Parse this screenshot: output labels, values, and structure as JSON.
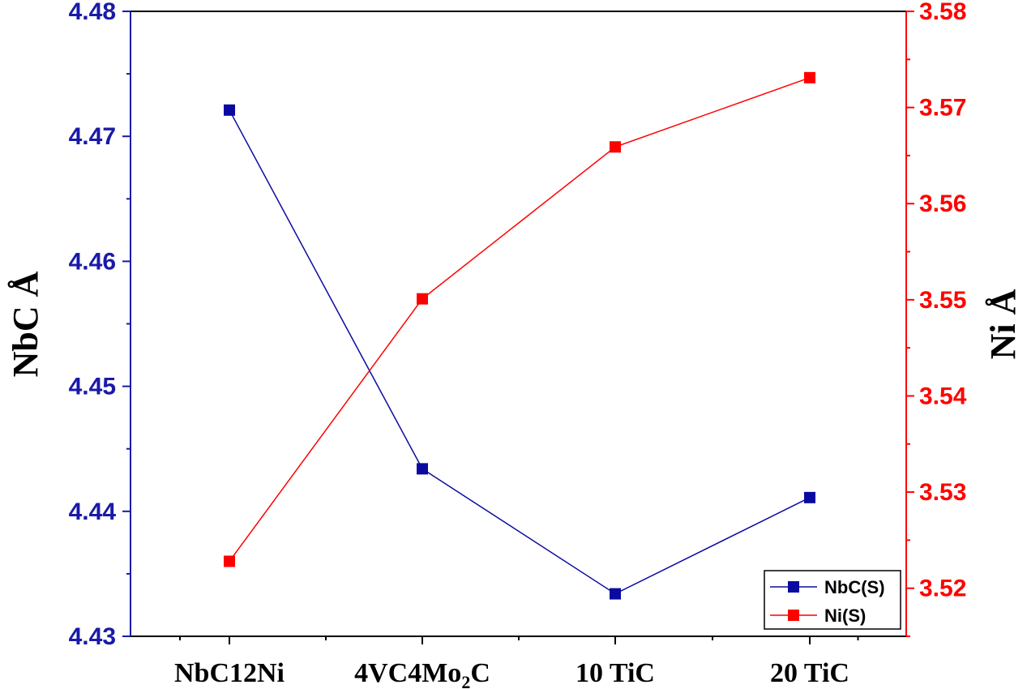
{
  "chart_data": {
    "type": "line",
    "categories": [
      "NbC12Ni",
      "4VC4Mo2C",
      "10 TiC",
      "20 TiC"
    ],
    "category_labels": [
      {
        "text": "NbC12Ni"
      },
      {
        "text": "4VC4Mo",
        "sub": "2",
        "tail": "C"
      },
      {
        "text": "10 TiC"
      },
      {
        "text": "20 TiC"
      }
    ],
    "ylabel_left": "NbC Å",
    "ylabel_right": "Ni Å",
    "ylim_left": [
      4.43,
      4.48
    ],
    "ylim_right": [
      3.515,
      3.58
    ],
    "yticks_left": [
      "4.43",
      "4.44",
      "4.45",
      "4.46",
      "4.47",
      "4.48"
    ],
    "yticks_right": [
      "3.52",
      "3.53",
      "3.54",
      "3.55",
      "3.56",
      "3.57",
      "3.58"
    ],
    "series": [
      {
        "name": "NbC(S)",
        "axis": "left",
        "color": "#0a0aa0",
        "values": [
          4.4721,
          4.4434,
          4.4334,
          4.4411
        ]
      },
      {
        "name": "Ni(S)",
        "axis": "right",
        "color": "#ff0000",
        "values": [
          3.5228,
          3.5501,
          3.5659,
          3.5731
        ]
      }
    ],
    "legend_position": "bottom-right",
    "grid": false,
    "colors": {
      "left_axis": "#1a1aa8",
      "right_axis": "#ff0000",
      "frame": "#000000"
    }
  }
}
